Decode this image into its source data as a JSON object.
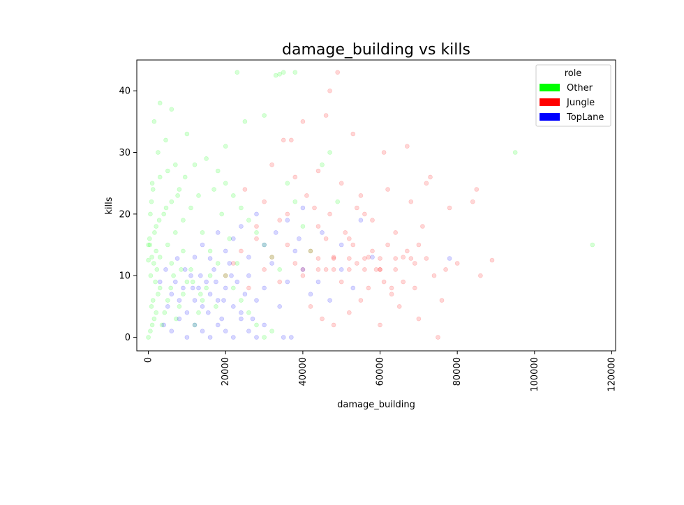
{
  "chart_data": {
    "type": "scatter",
    "title": "damage_building vs kills",
    "xlabel": "damage_building",
    "ylabel": "kills",
    "xlim": [
      -3000,
      121000
    ],
    "ylim": [
      -2.2,
      45
    ],
    "x_ticks": [
      0,
      20000,
      40000,
      60000,
      80000,
      100000,
      120000
    ],
    "y_ticks": [
      0,
      10,
      20,
      30,
      40
    ],
    "x_tick_rotation": 90,
    "grid": false,
    "legend": {
      "title": "role",
      "position": "top-right",
      "entries": [
        {
          "label": "Other",
          "color": "#00ff00"
        },
        {
          "label": "Jungle",
          "color": "#ff0000"
        },
        {
          "label": "TopLane",
          "color": "#0000ff"
        }
      ]
    },
    "point_alpha": 0.08,
    "series": [
      {
        "name": "Other",
        "color": "#00ff00",
        "points": [
          [
            0,
            0
          ],
          [
            500,
            1
          ],
          [
            1000,
            2
          ],
          [
            1500,
            3
          ],
          [
            2000,
            4
          ],
          [
            800,
            5
          ],
          [
            1200,
            6
          ],
          [
            2500,
            7
          ],
          [
            3000,
            8
          ],
          [
            1800,
            9
          ],
          [
            600,
            10
          ],
          [
            2200,
            11
          ],
          [
            1400,
            12
          ],
          [
            900,
            13
          ],
          [
            400,
            15
          ],
          [
            3500,
            2
          ],
          [
            4200,
            4
          ],
          [
            5000,
            6
          ],
          [
            5800,
            8
          ],
          [
            6500,
            10
          ],
          [
            7200,
            3
          ],
          [
            8000,
            5
          ],
          [
            9000,
            7
          ],
          [
            10000,
            9
          ],
          [
            11000,
            11
          ],
          [
            12000,
            2
          ],
          [
            13000,
            4
          ],
          [
            14000,
            6
          ],
          [
            15000,
            8
          ],
          [
            16000,
            10
          ],
          [
            3000,
            13
          ],
          [
            5000,
            15
          ],
          [
            7000,
            17
          ],
          [
            9000,
            19
          ],
          [
            11000,
            21
          ],
          [
            13000,
            23
          ],
          [
            2000,
            18
          ],
          [
            4000,
            20
          ],
          [
            6000,
            22
          ],
          [
            8000,
            24
          ],
          [
            1000,
            25
          ],
          [
            3000,
            26
          ],
          [
            5000,
            27
          ],
          [
            7000,
            28
          ],
          [
            2500,
            30
          ],
          [
            4500,
            32
          ],
          [
            1500,
            35
          ],
          [
            3000,
            38
          ],
          [
            6000,
            37
          ],
          [
            10000,
            33
          ],
          [
            15000,
            29
          ],
          [
            18000,
            27
          ],
          [
            20000,
            25
          ],
          [
            22000,
            23
          ],
          [
            24000,
            21
          ],
          [
            26000,
            19
          ],
          [
            28000,
            17
          ],
          [
            30000,
            15
          ],
          [
            32000,
            13
          ],
          [
            34000,
            11
          ],
          [
            25000,
            35
          ],
          [
            23000,
            43
          ],
          [
            35000,
            43
          ],
          [
            30000,
            36
          ],
          [
            20000,
            31
          ],
          [
            12000,
            28
          ],
          [
            17000,
            24
          ],
          [
            19000,
            20
          ],
          [
            21000,
            16
          ],
          [
            23000,
            12
          ],
          [
            36000,
            25
          ],
          [
            38000,
            22
          ],
          [
            40000,
            18
          ],
          [
            42000,
            14
          ],
          [
            45000,
            28
          ],
          [
            47000,
            30
          ],
          [
            33000,
            42.5
          ],
          [
            34000,
            42.7
          ],
          [
            38000,
            43
          ],
          [
            9000,
            14
          ],
          [
            500,
            20
          ],
          [
            800,
            22
          ],
          [
            1200,
            24
          ],
          [
            300,
            16
          ],
          [
            1600,
            17
          ],
          [
            2800,
            19
          ],
          [
            4600,
            21
          ],
          [
            7600,
            23
          ],
          [
            9500,
            26
          ],
          [
            14000,
            17
          ],
          [
            16000,
            14
          ],
          [
            18000,
            12
          ],
          [
            20000,
            10
          ],
          [
            22000,
            8
          ],
          [
            24000,
            6
          ],
          [
            26000,
            4
          ],
          [
            28000,
            2
          ],
          [
            30000,
            0
          ],
          [
            32000,
            1
          ],
          [
            95000,
            30
          ],
          [
            115000,
            15
          ],
          [
            49000,
            22
          ],
          [
            0,
            12.5
          ],
          [
            0,
            15
          ],
          [
            2000,
            14
          ],
          [
            6000,
            12
          ],
          [
            8500,
            11
          ],
          [
            11500,
            9
          ],
          [
            13500,
            7
          ],
          [
            17500,
            5
          ]
        ]
      },
      {
        "name": "Jungle",
        "color": "#ff0000",
        "points": [
          [
            20000,
            10
          ],
          [
            22000,
            12
          ],
          [
            24000,
            14
          ],
          [
            26000,
            8
          ],
          [
            28000,
            16
          ],
          [
            30000,
            11
          ],
          [
            32000,
            13
          ],
          [
            34000,
            9
          ],
          [
            36000,
            15
          ],
          [
            38000,
            12
          ],
          [
            40000,
            10
          ],
          [
            42000,
            14
          ],
          [
            44000,
            18
          ],
          [
            46000,
            11
          ],
          [
            48000,
            13
          ],
          [
            50000,
            9
          ],
          [
            52000,
            16
          ],
          [
            54000,
            12
          ],
          [
            56000,
            20
          ],
          [
            58000,
            14
          ],
          [
            60000,
            11
          ],
          [
            62000,
            24
          ],
          [
            64000,
            17
          ],
          [
            66000,
            13
          ],
          [
            68000,
            22
          ],
          [
            70000,
            15
          ],
          [
            72000,
            25
          ],
          [
            74000,
            10
          ],
          [
            76000,
            6
          ],
          [
            78000,
            21
          ],
          [
            80000,
            12
          ],
          [
            84000,
            22
          ],
          [
            86000,
            10
          ],
          [
            89000,
            12.5
          ],
          [
            85000,
            24
          ],
          [
            47000,
            40
          ],
          [
            49000,
            43
          ],
          [
            53000,
            33
          ],
          [
            61000,
            30
          ],
          [
            67000,
            31
          ],
          [
            35000,
            32
          ],
          [
            40000,
            35
          ],
          [
            44000,
            27
          ],
          [
            46000,
            36
          ],
          [
            50000,
            25
          ],
          [
            55000,
            23
          ],
          [
            58000,
            19
          ],
          [
            63000,
            8
          ],
          [
            65000,
            5
          ],
          [
            70000,
            3
          ],
          [
            42000,
            5
          ],
          [
            45000,
            3
          ],
          [
            48000,
            2
          ],
          [
            52000,
            4
          ],
          [
            55000,
            6
          ],
          [
            57000,
            8
          ],
          [
            60000,
            2
          ],
          [
            75000,
            0
          ],
          [
            36000,
            20
          ],
          [
            38000,
            26
          ],
          [
            30000,
            22
          ],
          [
            28000,
            18
          ],
          [
            25000,
            24
          ],
          [
            32000,
            28
          ],
          [
            34000,
            19
          ],
          [
            37000,
            32
          ],
          [
            41000,
            23
          ],
          [
            43000,
            21
          ],
          [
            47000,
            20
          ],
          [
            51000,
            17
          ],
          [
            53000,
            15
          ],
          [
            57000,
            13
          ],
          [
            59000,
            11
          ],
          [
            61000,
            9
          ],
          [
            63000,
            7
          ],
          [
            67000,
            14
          ],
          [
            69000,
            12
          ],
          [
            71000,
            18
          ],
          [
            73000,
            26
          ],
          [
            77000,
            11
          ],
          [
            44000,
            12.8
          ],
          [
            48000,
            12.8
          ],
          [
            52000,
            12.8
          ],
          [
            56000,
            12.8
          ],
          [
            60000,
            12.8
          ],
          [
            64000,
            12.8
          ],
          [
            68000,
            12.8
          ],
          [
            72000,
            12.8
          ],
          [
            40000,
            11
          ],
          [
            44000,
            11
          ],
          [
            48000,
            11
          ],
          [
            52000,
            11
          ],
          [
            56000,
            11
          ],
          [
            60000,
            11
          ],
          [
            64000,
            11
          ],
          [
            66000,
            9
          ],
          [
            69000,
            8
          ],
          [
            62000,
            15
          ],
          [
            54000,
            21
          ],
          [
            46000,
            16
          ]
        ]
      },
      {
        "name": "TopLane",
        "color": "#0000ff",
        "points": [
          [
            5000,
            5
          ],
          [
            6000,
            7
          ],
          [
            7000,
            9
          ],
          [
            8000,
            6
          ],
          [
            9000,
            8
          ],
          [
            10000,
            4
          ],
          [
            11000,
            10
          ],
          [
            12000,
            6
          ],
          [
            13000,
            8
          ],
          [
            14000,
            5
          ],
          [
            15000,
            9
          ],
          [
            16000,
            7
          ],
          [
            17000,
            11
          ],
          [
            18000,
            6
          ],
          [
            19000,
            3
          ],
          [
            20000,
            8
          ],
          [
            21000,
            12
          ],
          [
            22000,
            5
          ],
          [
            23000,
            9
          ],
          [
            24000,
            4
          ],
          [
            25000,
            7
          ],
          [
            26000,
            10
          ],
          [
            27000,
            3
          ],
          [
            28000,
            6
          ],
          [
            30000,
            8
          ],
          [
            32000,
            12
          ],
          [
            34000,
            5
          ],
          [
            36000,
            9
          ],
          [
            38000,
            14
          ],
          [
            40000,
            11
          ],
          [
            4000,
            2
          ],
          [
            6000,
            1
          ],
          [
            8000,
            3
          ],
          [
            10000,
            0
          ],
          [
            12000,
            2
          ],
          [
            14000,
            1
          ],
          [
            16000,
            0
          ],
          [
            18000,
            2
          ],
          [
            20000,
            1
          ],
          [
            22000,
            0
          ],
          [
            24000,
            3
          ],
          [
            26000,
            1
          ],
          [
            28000,
            0
          ],
          [
            30000,
            2
          ],
          [
            35000,
            0
          ],
          [
            37000,
            0
          ],
          [
            12000,
            13
          ],
          [
            14000,
            15
          ],
          [
            16000,
            12.8
          ],
          [
            18000,
            17
          ],
          [
            20000,
            14
          ],
          [
            22000,
            16
          ],
          [
            24000,
            18
          ],
          [
            26000,
            13
          ],
          [
            28000,
            20
          ],
          [
            30000,
            15
          ],
          [
            33000,
            17
          ],
          [
            36000,
            19
          ],
          [
            40000,
            21
          ],
          [
            45000,
            17
          ],
          [
            50000,
            15
          ],
          [
            55000,
            19
          ],
          [
            39000,
            16
          ],
          [
            42000,
            7
          ],
          [
            44000,
            9
          ],
          [
            47000,
            6
          ],
          [
            50000,
            11
          ],
          [
            53000,
            8
          ],
          [
            78000,
            12.8
          ],
          [
            58000,
            13
          ],
          [
            3000,
            9
          ],
          [
            4500,
            11
          ],
          [
            7500,
            12.8
          ],
          [
            9500,
            11
          ],
          [
            11500,
            8
          ],
          [
            13500,
            10
          ],
          [
            15500,
            4
          ],
          [
            17500,
            9
          ],
          [
            19500,
            6
          ],
          [
            21500,
            10
          ]
        ]
      }
    ]
  }
}
